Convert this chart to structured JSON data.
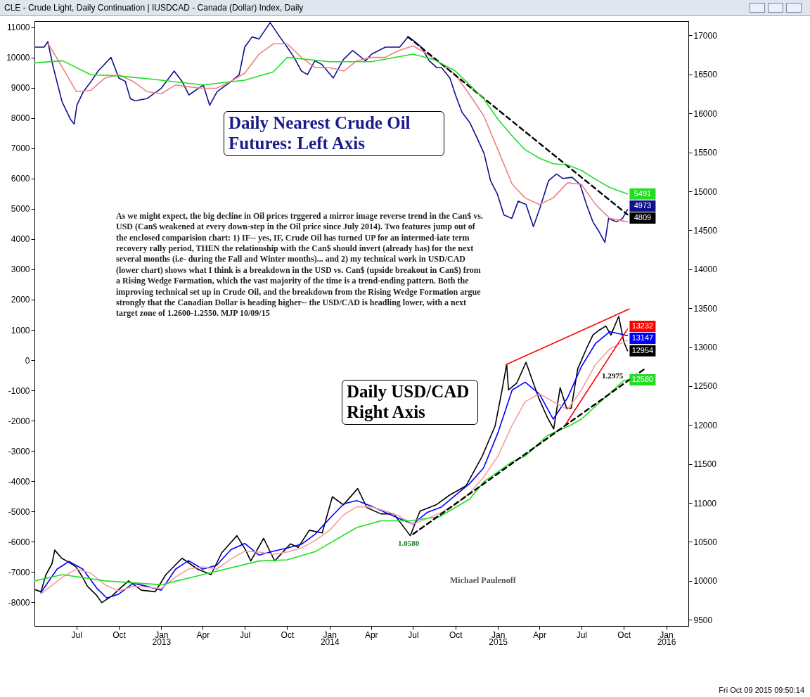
{
  "chart_data": {
    "type": "line",
    "title": "CLE - Crude Light, Daily Continuation  |  IUSDCAD - Canada (Dollar) Index, Daily",
    "xlim": [
      "2012-04-01",
      "2016-02-18"
    ],
    "xticks": [
      {
        "value": "2012-07-01",
        "label": "Jul"
      },
      {
        "value": "2012-10-01",
        "label": "Oct"
      },
      {
        "value": "2013-01-01",
        "label": "Jan"
      },
      {
        "value": "2013-04-01",
        "label": "Apr"
      },
      {
        "value": "2013-07-01",
        "label": "Jul"
      },
      {
        "value": "2013-10-01",
        "label": "Oct"
      },
      {
        "value": "2014-01-01",
        "label": "Jan"
      },
      {
        "value": "2014-04-01",
        "label": "Apr"
      },
      {
        "value": "2014-07-01",
        "label": "Jul"
      },
      {
        "value": "2014-10-01",
        "label": "Oct"
      },
      {
        "value": "2015-01-01",
        "label": "Jan"
      },
      {
        "value": "2015-04-01",
        "label": "Apr"
      },
      {
        "value": "2015-07-01",
        "label": "Jul"
      },
      {
        "value": "2015-10-01",
        "label": "Oct"
      },
      {
        "value": "2016-01-01",
        "label": "Jan"
      }
    ],
    "x2lim": [
      "2012-04-01",
      "2016-02-18"
    ],
    "x2ticks": [
      {
        "value": "2013-01-01",
        "label": "2013"
      },
      {
        "value": "2014-01-01",
        "label": "2014"
      },
      {
        "value": "2015-01-01",
        "label": "2015"
      },
      {
        "value": "2016-01-01",
        "label": "2016"
      }
    ],
    "ylim": [
      -8780,
      11200
    ],
    "yticks": [
      -8000,
      -7000,
      -6000,
      -5000,
      -4000,
      -3000,
      -2000,
      -1000,
      0,
      1000,
      2000,
      3000,
      4000,
      5000,
      6000,
      7000,
      8000,
      9000,
      10000,
      11000
    ],
    "y2lim": [
      9421,
      17185
    ],
    "y2ticks": [
      9500,
      10000,
      10500,
      11000,
      11500,
      12000,
      12500,
      13000,
      13500,
      14000,
      14500,
      15000,
      15500,
      16000,
      16500,
      17000
    ],
    "series": [
      {
        "color": "#10108c",
        "x": [
          "2012-04-01",
          "2012-04-22",
          "2012-04-30",
          "2012-05-12",
          "2012-05-31",
          "2012-06-18",
          "2012-06-26",
          "2012-07-02",
          "2012-07-16",
          "2012-08-02",
          "2012-08-17",
          "2012-09-14",
          "2012-10-01",
          "2012-10-15",
          "2012-10-26",
          "2012-11-05",
          "2012-12-01",
          "2013-01-01",
          "2013-01-29",
          "2013-02-15",
          "2013-03-02",
          "2013-04-02",
          "2013-04-16",
          "2013-05-02",
          "2013-06-02",
          "2013-06-19",
          "2013-07-01",
          "2013-07-17",
          "2013-08-01",
          "2013-08-25",
          "2013-09-15",
          "2013-10-01",
          "2013-10-16",
          "2013-11-01",
          "2013-11-14",
          "2013-11-30",
          "2013-12-15",
          "2014-01-09",
          "2014-01-31",
          "2014-02-20",
          "2014-03-20",
          "2014-04-02",
          "2014-05-02",
          "2014-06-02",
          "2014-06-20",
          "2014-07-01",
          "2014-07-19",
          "2014-08-05",
          "2014-08-22",
          "2014-09-01",
          "2014-09-19",
          "2014-10-01",
          "2014-10-15",
          "2014-11-01",
          "2014-11-15",
          "2014-12-02",
          "2014-12-16",
          "2014-12-31",
          "2015-01-14",
          "2015-01-31",
          "2015-02-14",
          "2015-03-03",
          "2015-03-19",
          "2015-04-02",
          "2015-04-21",
          "2015-05-08",
          "2015-05-22",
          "2015-06-11",
          "2015-06-28",
          "2015-07-12",
          "2015-07-26",
          "2015-08-09",
          "2015-08-21",
          "2015-08-29",
          "2015-09-15",
          "2015-09-28",
          "2015-10-09"
        ],
        "values": [
          10340,
          10340,
          10520,
          9660,
          8530,
          7960,
          7800,
          8420,
          8870,
          9210,
          9550,
          10000,
          9320,
          9210,
          8640,
          8570,
          8640,
          8980,
          9550,
          9210,
          8760,
          9090,
          8420,
          8870,
          9210,
          9430,
          10340,
          10680,
          10610,
          11150,
          10680,
          10340,
          10000,
          9550,
          9430,
          9890,
          9770,
          9320,
          9930,
          10230,
          9890,
          10110,
          10340,
          10340,
          10680,
          10570,
          10340,
          9890,
          9660,
          9660,
          9320,
          8760,
          8190,
          7850,
          7400,
          6830,
          5930,
          5480,
          4800,
          4680,
          5250,
          5140,
          4410,
          5020,
          5930,
          6150,
          6000,
          6040,
          5810,
          5140,
          4570,
          4230,
          3890,
          4680,
          4570,
          4680,
          4973
        ],
        "value_labels": [
          null,
          null,
          null,
          null,
          null,
          null,
          null,
          null,
          null,
          null,
          null,
          null,
          null,
          null,
          null,
          null,
          null,
          null,
          null,
          null,
          null,
          null,
          null,
          null,
          null,
          null,
          null,
          null,
          null,
          null,
          null,
          null,
          null,
          null,
          null,
          null,
          null,
          null,
          null,
          null,
          null,
          null,
          null,
          null,
          null,
          null,
          null,
          null,
          null,
          null,
          null,
          null,
          null,
          null,
          null,
          null,
          null,
          null,
          null,
          null,
          null,
          null,
          null,
          null,
          null,
          null,
          null,
          null,
          null,
          null,
          null,
          null,
          null,
          null,
          null,
          null,
          "4973"
        ]
      },
      {
        "color": "#f08080",
        "x": [
          "2012-05",
          "2012-06",
          "2012-07",
          "2012-08",
          "2012-09",
          "2012-10",
          "2012-11",
          "2012-12",
          "2013-01",
          "2013-02",
          "2013-03",
          "2013-04",
          "2013-05",
          "2013-06",
          "2013-07",
          "2013-08",
          "2013-09",
          "2013-10",
          "2013-11",
          "2013-12",
          "2014-01",
          "2014-02",
          "2014-03",
          "2014-04",
          "2014-05",
          "2014-06",
          "2014-07",
          "2014-08",
          "2014-09",
          "2014-10",
          "2014-11",
          "2014-12",
          "2015-01",
          "2015-02",
          "2015-03",
          "2015-04",
          "2015-05",
          "2015-06",
          "2015-07",
          "2015-08",
          "2015-09",
          "2015-10-09"
        ],
        "values": [
          10450,
          9660,
          8870,
          8910,
          9320,
          9430,
          9210,
          8870,
          8800,
          9090,
          9030,
          8980,
          8980,
          9210,
          9480,
          10110,
          10450,
          10450,
          10000,
          9660,
          9660,
          9550,
          9890,
          10000,
          10000,
          10230,
          10380,
          10110,
          9770,
          9430,
          8760,
          8080,
          6950,
          5810,
          5360,
          5140,
          5360,
          5860,
          5810,
          5140,
          4680,
          4570
        ]
      },
      {
        "color": "#000000",
        "line_style": "dashed",
        "x": [
          "2014-06-20",
          "2015-10-09"
        ],
        "values": [
          10680,
          4809
        ],
        "value_labels": [
          null,
          "4809"
        ]
      },
      {
        "color": "#22dd22",
        "x": [
          "2012-04",
          "2012-06",
          "2012-08",
          "2012-10",
          "2013-01",
          "2013-04",
          "2013-07",
          "2013-09",
          "2013-10",
          "2014-01",
          "2014-04",
          "2014-07",
          "2014-08-15",
          "2014-10",
          "2014-11",
          "2014-12",
          "2015-01",
          "2015-02",
          "2015-03",
          "2015-04",
          "2015-05",
          "2015-06",
          "2015-07",
          "2015-08",
          "2015-09",
          "2015-10-09"
        ],
        "values": [
          9820,
          9890,
          9430,
          9390,
          9250,
          9090,
          9250,
          9520,
          10000,
          9860,
          9860,
          10110,
          9930,
          9550,
          9090,
          8640,
          7960,
          7400,
          6950,
          6670,
          6490,
          6450,
          6270,
          5970,
          5700,
          5491
        ],
        "value_labels": [
          null,
          null,
          null,
          null,
          null,
          null,
          null,
          null,
          null,
          null,
          null,
          null,
          null,
          null,
          null,
          null,
          null,
          null,
          null,
          null,
          null,
          null,
          null,
          null,
          null,
          "5491"
        ]
      },
      {
        "color": "#000000",
        "axis": "y2",
        "x": [
          "2012-04-01",
          "2012-04-15",
          "2012-04-26",
          "2012-05-09",
          "2012-05-15",
          "2012-05-30",
          "2012-06-10",
          "2012-06-30",
          "2012-07-13",
          "2012-07-25",
          "2012-08-13",
          "2012-08-25",
          "2012-09-17",
          "2012-10-01",
          "2012-10-22",
          "2012-11-19",
          "2012-12-19",
          "2013-01-11",
          "2013-02-15",
          "2013-03-21",
          "2013-04-19",
          "2013-05-12",
          "2013-06-14",
          "2013-07-03",
          "2013-07-14",
          "2013-08-11",
          "2013-09-04",
          "2013-10-08",
          "2013-10-25",
          "2013-11-18",
          "2013-12-16",
          "2014-01-07",
          "2014-01-31",
          "2014-03-03",
          "2014-03-23",
          "2014-04-22",
          "2014-05-20",
          "2014-06-25",
          "2014-07-16",
          "2014-08-20",
          "2014-09-18",
          "2014-10-24",
          "2014-11-28",
          "2014-12-26",
          "2015-01-10",
          "2015-01-20",
          "2015-01-24",
          "2015-02-11",
          "2015-03-03",
          "2015-03-17",
          "2015-03-31",
          "2015-04-18",
          "2015-05-02",
          "2015-05-16",
          "2015-05-30",
          "2015-06-09",
          "2015-06-23",
          "2015-07-12",
          "2015-07-26",
          "2015-08-09",
          "2015-08-23",
          "2015-09-03",
          "2015-09-20",
          "2015-10-01",
          "2015-10-09"
        ],
        "values": [
          9890,
          9860,
          10080,
          10220,
          10395,
          10290,
          10255,
          10180,
          10060,
          9930,
          9820,
          9720,
          9810,
          9890,
          10000,
          9880,
          9860,
          10080,
          10290,
          10150,
          10080,
          10360,
          10580,
          10395,
          10255,
          10545,
          10255,
          10475,
          10430,
          10650,
          10615,
          11080,
          10975,
          11185,
          10940,
          10860,
          10860,
          10580,
          10895,
          10975,
          11100,
          11220,
          11600,
          11990,
          12450,
          12780,
          12450,
          12540,
          12805,
          12570,
          12340,
          12100,
          11950,
          12480,
          12215,
          12215,
          12720,
          12980,
          13155,
          13220,
          13270,
          13155,
          13395,
          13070,
          12954
        ],
        "value_labels": [
          null,
          null,
          null,
          null,
          null,
          null,
          null,
          null,
          null,
          null,
          null,
          null,
          null,
          null,
          null,
          null,
          null,
          null,
          null,
          null,
          null,
          null,
          null,
          null,
          null,
          null,
          null,
          null,
          null,
          null,
          null,
          null,
          null,
          null,
          null,
          null,
          null,
          null,
          null,
          null,
          null,
          null,
          null,
          null,
          null,
          null,
          null,
          null,
          null,
          null,
          null,
          null,
          null,
          null,
          null,
          null,
          null,
          null,
          null,
          null,
          null,
          null,
          null,
          null,
          "12954"
        ]
      },
      {
        "color": "#0000ff",
        "axis": "y2",
        "x": [
          "2012-04-15",
          "2012-05-20",
          "2012-06-15",
          "2012-07-15",
          "2012-08-15",
          "2012-09-05",
          "2012-10-01",
          "2012-11-01",
          "2012-12-01",
          "2013-01-01",
          "2013-02-01",
          "2013-03-01",
          "2013-04-01",
          "2013-05-01",
          "2013-06-01",
          "2013-07-01",
          "2013-08-01",
          "2013-09-01",
          "2013-10-01",
          "2013-11-01",
          "2013-12-01",
          "2014-01-01",
          "2014-02-01",
          "2014-03-01",
          "2014-04-01",
          "2014-05-01",
          "2014-06-01",
          "2014-07-01",
          "2014-08-01",
          "2014-09-01",
          "2014-10-01",
          "2014-11-01",
          "2014-12-01",
          "2015-01-01",
          "2015-02-01",
          "2015-03-01",
          "2015-04-01",
          "2015-05-01",
          "2015-06-01",
          "2015-07-01",
          "2015-08-01",
          "2015-09-01",
          "2015-10-09"
        ],
        "values": [
          9850,
          10150,
          10250,
          10150,
          9900,
          9780,
          9830,
          9970,
          9930,
          9880,
          10150,
          10260,
          10150,
          10200,
          10400,
          10480,
          10330,
          10380,
          10420,
          10470,
          10600,
          10800,
          10990,
          11030,
          10960,
          10880,
          10800,
          10730,
          10880,
          10950,
          11100,
          11250,
          11450,
          11900,
          12450,
          12550,
          12400,
          12075,
          12350,
          12750,
          13050,
          13200,
          13147
        ],
        "value_labels": [
          null,
          null,
          null,
          null,
          null,
          null,
          null,
          null,
          null,
          null,
          null,
          null,
          null,
          null,
          null,
          null,
          null,
          null,
          null,
          null,
          null,
          null,
          null,
          null,
          null,
          null,
          null,
          null,
          null,
          null,
          null,
          null,
          null,
          null,
          null,
          null,
          null,
          null,
          null,
          null,
          null,
          null,
          "13147"
        ]
      },
      {
        "color": "#f4a0a0",
        "axis": "y2",
        "x": [
          "2012-04-15",
          "2012-06-01",
          "2012-07-01",
          "2012-08-01",
          "2012-09-01",
          "2012-10-01",
          "2012-11-01",
          "2012-12-01",
          "2013-01-01",
          "2013-02-01",
          "2013-03-01",
          "2013-04-01",
          "2013-05-01",
          "2013-06-01",
          "2013-07-01",
          "2013-08-01",
          "2013-09-01",
          "2013-10-01",
          "2013-11-01",
          "2013-12-01",
          "2014-01-01",
          "2014-02-01",
          "2014-03-01",
          "2014-04-01",
          "2014-05-01",
          "2014-06-01",
          "2014-07-01",
          "2014-08-01",
          "2014-09-01",
          "2014-10-01",
          "2014-11-01",
          "2014-12-01",
          "2015-01-01",
          "2015-02-01",
          "2015-03-01",
          "2015-04-01",
          "2015-05-01",
          "2015-06-01",
          "2015-07-01",
          "2015-08-01",
          "2015-09-01",
          "2015-10-09"
        ],
        "values": [
          9830,
          10050,
          10150,
          10100,
          9950,
          9870,
          9930,
          9920,
          9900,
          10050,
          10150,
          10180,
          10150,
          10280,
          10380,
          10370,
          10340,
          10370,
          10420,
          10520,
          10650,
          10850,
          10950,
          10950,
          10900,
          10830,
          10730,
          10800,
          10880,
          10980,
          11130,
          11330,
          11600,
          12000,
          12300,
          12400,
          12300,
          12200,
          12450,
          12780,
          12980,
          13090
        ]
      },
      {
        "color": "#22dd22",
        "axis": "y2",
        "x": [
          "2012-04-01",
          "2012-06-01",
          "2012-09-01",
          "2013-01-01",
          "2013-04-01",
          "2013-08-01",
          "2013-10-01",
          "2013-12-01",
          "2014-03-01",
          "2014-04-22",
          "2014-06-25",
          "2014-08-28",
          "2014-11-01",
          "2014-12-01",
          "2015-01-01",
          "2015-02-01",
          "2015-03-01",
          "2015-04-18",
          "2015-06-05",
          "2015-07-01",
          "2015-08-19",
          "2015-10-01",
          "2015-10-09"
        ],
        "values": [
          10000,
          10080,
          10000,
          9950,
          10080,
          10255,
          10270,
          10375,
          10685,
          10770,
          10770,
          10825,
          11050,
          11270,
          11400,
          11530,
          11600,
          11865,
          11990,
          12075,
          12340,
          12570,
          12580
        ],
        "value_labels": [
          null,
          null,
          null,
          null,
          null,
          null,
          null,
          null,
          null,
          null,
          null,
          null,
          null,
          null,
          null,
          null,
          null,
          null,
          null,
          null,
          null,
          null,
          "12580"
        ]
      },
      {
        "color": "#ff0000",
        "axis": "y2",
        "x": [
          "2015-01-20",
          "2015-10-13"
        ],
        "values": [
          12780,
          13490
        ]
      },
      {
        "color": "#ff0000",
        "axis": "y2",
        "x": [
          "2015-05-28",
          "2015-10-09"
        ],
        "values": [
          12010,
          13232
        ],
        "value_labels": [
          null,
          "13232"
        ]
      },
      {
        "color": "#000000",
        "axis": "y2",
        "line_style": "dashed",
        "x": [
          "2014-07-01",
          "2015-11-15"
        ],
        "values": [
          10600,
          12720
        ]
      }
    ],
    "annotations": [
      "Daily Nearest Crude Oil Futures: Left Axis",
      "As we might expect, the big decline in Oil prices trggered a mirror image reverse trend in the Can$ vs. USD (Can$ weakened at every down-step in the Oil price since July 2014). Two features jump out of the enclosed comparision chart: 1) IF-- yes, IF, Crude Oil has turned UP for an intermed-iate term recovery rally period, THEN the relationship with the Can$ should invert (already has) for the next several months (i.e- during the Fall and Winter months)... and 2) my technical work in USD/CAD (lower chart) shows what I think is a breakdown in the USD vs. Can$ (upside breakout in Can$) from a Rising Wedge Formation, which the vast majority of the time is a trend-ending pattern. Both the improving technical set up in Crude Oil, and the breakdown from the Rising Wedge Formation argue strongly that the Canadian Dollar is heading higher-- the USD/CAD is headling lower, with a next target zone of 1.2600-1.2550.  MJP 10/09/15",
      "Daily USD/CAD Right Axis",
      "Michael Paulenoff",
      "Fri Oct 09 2015 09:50:14",
      "1.2975",
      "1.0580"
    ]
  }
}
